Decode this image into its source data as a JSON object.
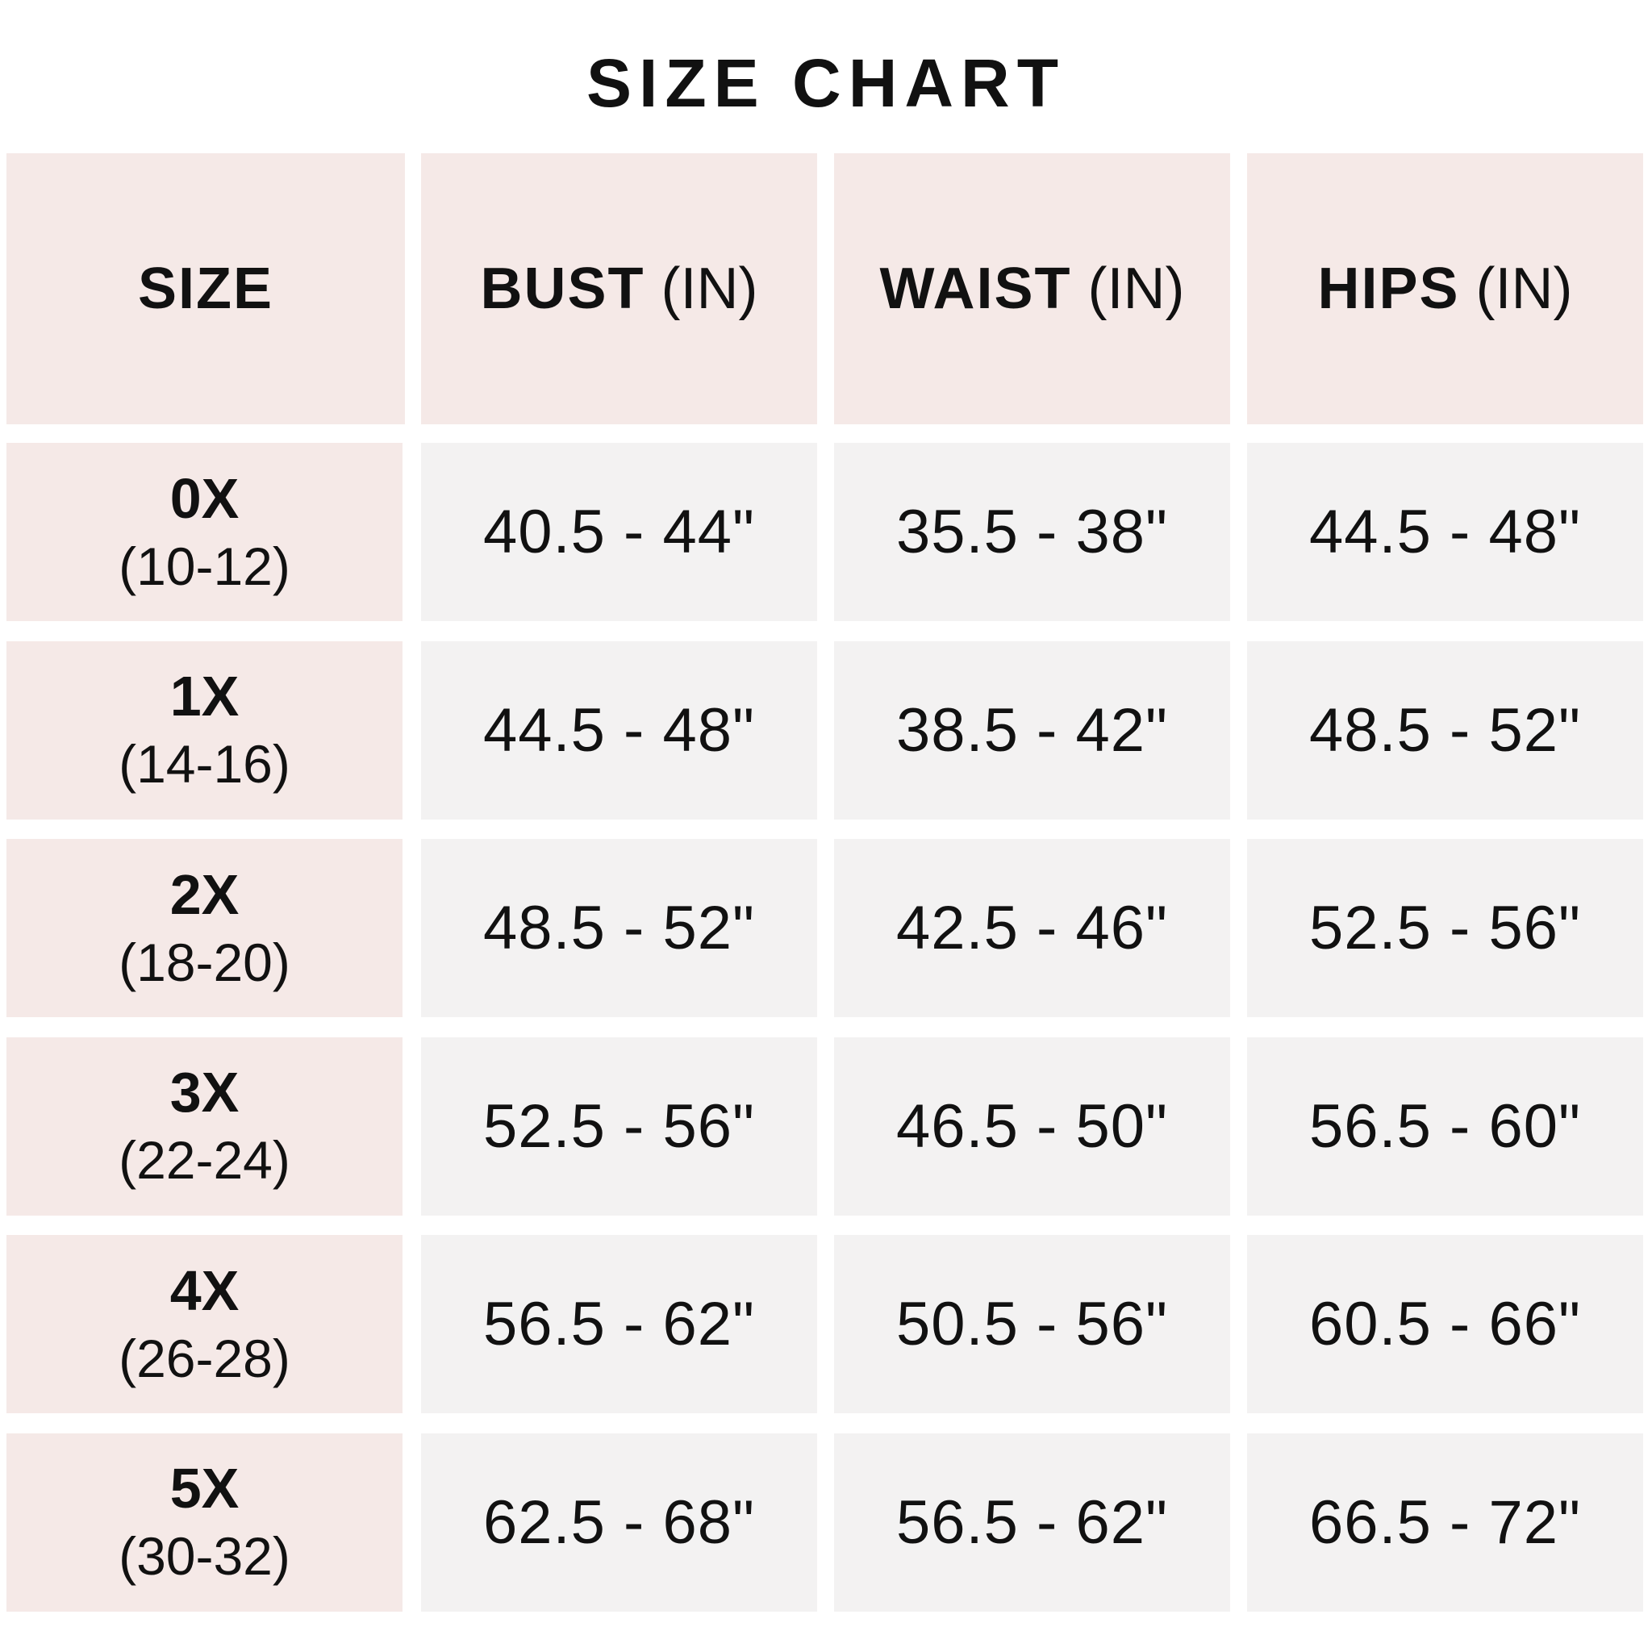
{
  "title": "SIZE CHART",
  "colors": {
    "header_bg": "#f5e9e7",
    "size_col_bg": "#f5e9e7",
    "value_bg": "#f3f2f2"
  },
  "headers": [
    {
      "label": "SIZE",
      "unit": ""
    },
    {
      "label": "BUST",
      "unit": "(IN)"
    },
    {
      "label": "WAIST",
      "unit": "(IN)"
    },
    {
      "label": "HIPS",
      "unit": "(IN)"
    }
  ],
  "rows": [
    {
      "size": "0X",
      "us": "(10-12)",
      "bust": "40.5 - 44\"",
      "waist": "35.5 - 38\"",
      "hips": "44.5 - 48\""
    },
    {
      "size": "1X",
      "us": "(14-16)",
      "bust": "44.5 - 48\"",
      "waist": "38.5 - 42\"",
      "hips": "48.5 - 52\""
    },
    {
      "size": "2X",
      "us": "(18-20)",
      "bust": "48.5 - 52\"",
      "waist": "42.5 - 46\"",
      "hips": "52.5 - 56\""
    },
    {
      "size": "3X",
      "us": "(22-24)",
      "bust": "52.5 - 56\"",
      "waist": "46.5 - 50\"",
      "hips": "56.5 - 60\""
    },
    {
      "size": "4X",
      "us": "(26-28)",
      "bust": "56.5 - 62\"",
      "waist": "50.5 - 56\"",
      "hips": "60.5 - 66\""
    },
    {
      "size": "5X",
      "us": "(30-32)",
      "bust": "62.5 - 68\"",
      "waist": "56.5 - 62\"",
      "hips": "66.5 - 72\""
    }
  ]
}
